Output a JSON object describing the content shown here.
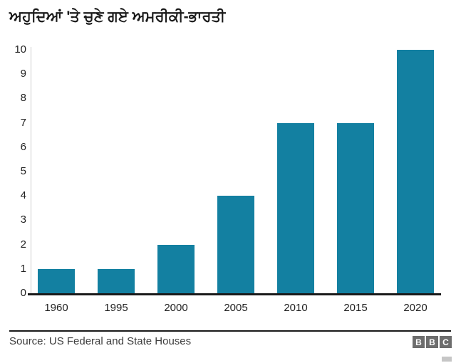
{
  "title": "ਅਹੁਦਿਆਂ 'ਤੇ ਚੁਣੇ ਗਏ ਅਮਰੀਕੀ-ਭਾਰਤੀ",
  "chart_data": {
    "type": "bar",
    "title": "ਅਹੁਦਿਆਂ 'ਤੇ ਚੁਣੇ ਗਏ ਅਮਰੀਕੀ-ਭਾਰਤੀ",
    "categories": [
      "1960",
      "1995",
      "2000",
      "2005",
      "2010",
      "2015",
      "2020"
    ],
    "values": [
      1,
      1,
      2,
      4,
      7,
      7,
      10
    ],
    "xlabel": "",
    "ylabel": "",
    "ylim": [
      0,
      10
    ],
    "ytick_step": 1,
    "grid": false,
    "legend": "none",
    "bar_color": "#1380A1"
  },
  "footer": {
    "source": "Source: US Federal and State Houses",
    "logo_letters": [
      "B",
      "B",
      "C"
    ]
  },
  "colors": {
    "bar": "#1380A1",
    "baseline": "#1a1a1a",
    "y_axis_line": "#cccccc",
    "tick_text": "#222222",
    "source_text": "#3d3d3d",
    "logo_gray": "#6d6d6d"
  }
}
